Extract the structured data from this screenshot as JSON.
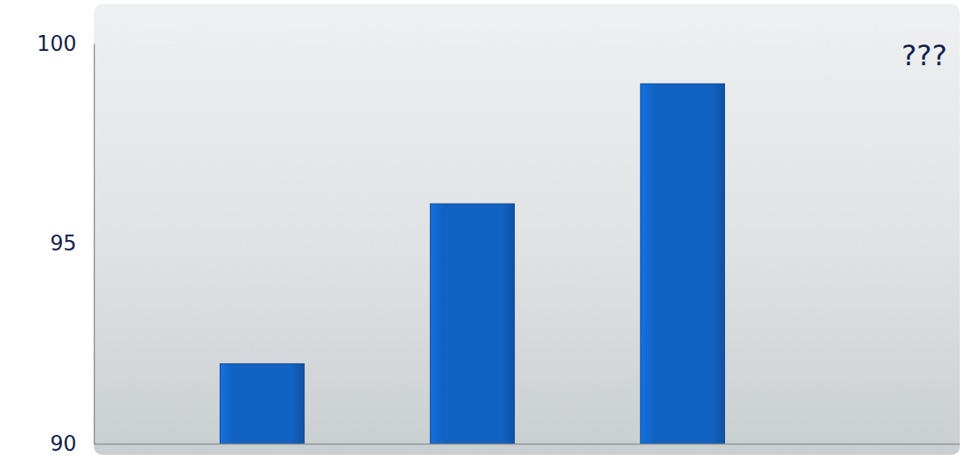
{
  "chart_data": {
    "type": "bar",
    "categories": [
      null,
      null,
      null
    ],
    "values": [
      92,
      96,
      99
    ],
    "color": "#1262c2",
    "ylim": [
      90,
      100
    ],
    "yticks": [
      90,
      95,
      100
    ],
    "grid": false,
    "tick_labels": "y",
    "annotations": [
      "???"
    ]
  }
}
